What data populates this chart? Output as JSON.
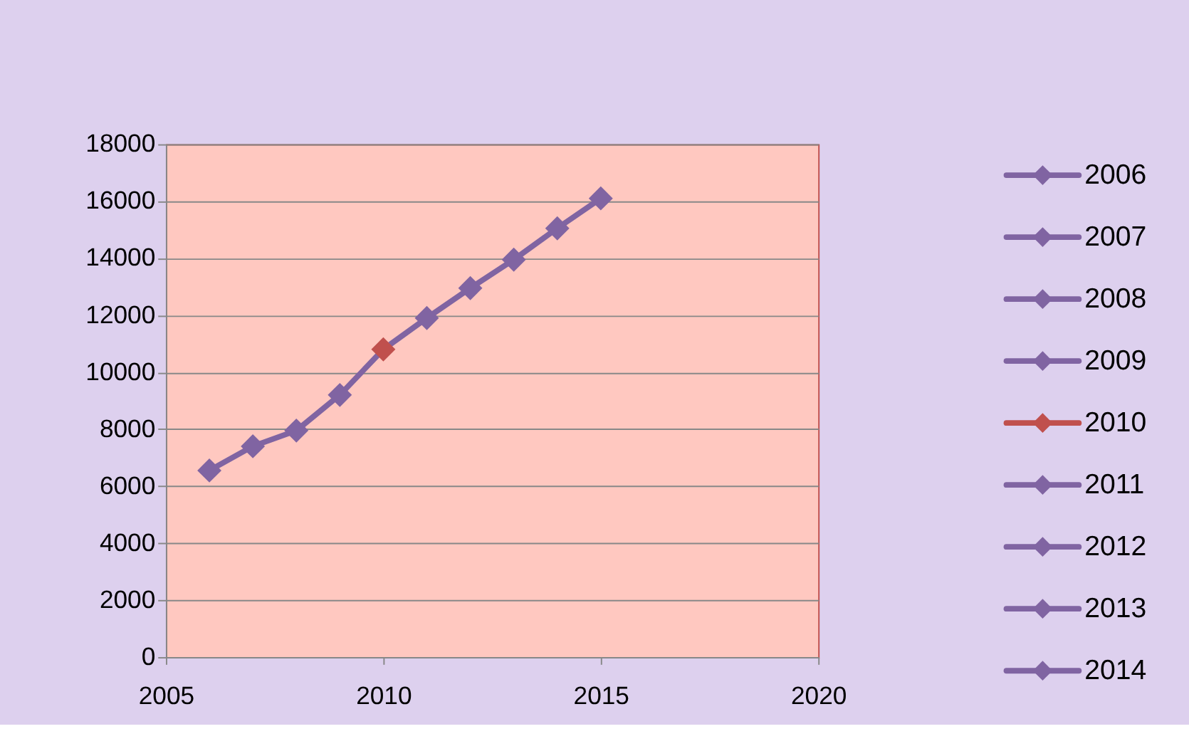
{
  "chart_data": {
    "type": "line",
    "xlim": [
      2005,
      2020
    ],
    "xticks": [
      2005,
      2010,
      2015,
      2020
    ],
    "ylim": [
      0,
      18000
    ],
    "yticks": [
      0,
      2000,
      4000,
      6000,
      8000,
      10000,
      12000,
      14000,
      16000,
      18000
    ],
    "grid": "y",
    "legend": "right",
    "line_style": "solid",
    "series": [
      {
        "color": "#8064a2",
        "marker": "none",
        "x": [
          2006,
          2007,
          2008,
          2009,
          2010,
          2011,
          2012,
          2013,
          2014,
          2015
        ],
        "values": [
          6550,
          7400,
          7950,
          9200,
          10800,
          11900,
          12950,
          13950,
          15050,
          16100
        ]
      },
      {
        "type": "scatter",
        "name": "2006",
        "color": "#8064a2",
        "marker": "diamond",
        "x": [
          2006
        ],
        "values": [
          6550
        ]
      },
      {
        "type": "scatter",
        "name": "2007",
        "color": "#8064a2",
        "marker": "diamond",
        "x": [
          2007
        ],
        "values": [
          7400
        ]
      },
      {
        "type": "scatter",
        "name": "2008",
        "color": "#8064a2",
        "marker": "diamond",
        "x": [
          2008
        ],
        "values": [
          7950
        ]
      },
      {
        "type": "scatter",
        "name": "2009",
        "color": "#8064a2",
        "marker": "diamond",
        "x": [
          2009
        ],
        "values": [
          9200
        ]
      },
      {
        "type": "scatter",
        "name": "2010",
        "color": "#c0504d",
        "marker": "diamond",
        "x": [
          2010
        ],
        "values": [
          10800
        ]
      },
      {
        "type": "scatter",
        "name": "2011",
        "color": "#8064a2",
        "marker": "diamond",
        "x": [
          2011
        ],
        "values": [
          11900
        ]
      },
      {
        "type": "scatter",
        "name": "2012",
        "color": "#8064a2",
        "marker": "diamond",
        "x": [
          2012
        ],
        "values": [
          12950
        ]
      },
      {
        "type": "scatter",
        "name": "2013",
        "color": "#8064a2",
        "marker": "diamond",
        "x": [
          2013
        ],
        "values": [
          13950
        ]
      },
      {
        "type": "scatter",
        "name": "2014",
        "color": "#8064a2",
        "marker": "diamond",
        "x": [
          2014
        ],
        "values": [
          15050
        ]
      },
      {
        "type": "scatter",
        "color": "#8064a2",
        "marker": "diamond",
        "x": [
          2015
        ],
        "values": [
          16100
        ]
      }
    ]
  }
}
